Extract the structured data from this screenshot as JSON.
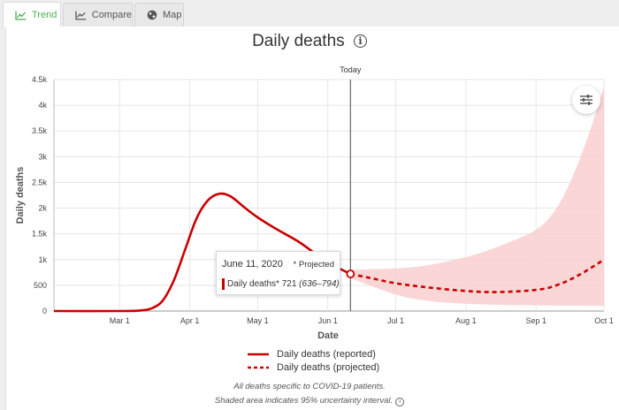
{
  "tabs": [
    {
      "label": "Trend",
      "icon": "line-chart-icon",
      "active": true
    },
    {
      "label": "Compare",
      "icon": "chart-compare-icon",
      "active": false
    },
    {
      "label": "Map",
      "icon": "globe-icon",
      "active": false
    }
  ],
  "chart_data": {
    "type": "line",
    "title": "Daily deaths",
    "xlabel": "Date",
    "ylabel": "Daily deaths",
    "x_range": [
      "2020-02-01",
      "2020-10-01"
    ],
    "x_ticks": [
      {
        "date": "2020-03-01",
        "label": "Mar 1"
      },
      {
        "date": "2020-04-01",
        "label": "Apr 1"
      },
      {
        "date": "2020-05-01",
        "label": "May 1"
      },
      {
        "date": "2020-06-01",
        "label": "Jun 1"
      },
      {
        "date": "2020-07-01",
        "label": "Jul 1"
      },
      {
        "date": "2020-08-01",
        "label": "Aug 1"
      },
      {
        "date": "2020-09-01",
        "label": "Sep 1"
      },
      {
        "date": "2020-10-01",
        "label": "Oct 1"
      }
    ],
    "ylim": [
      0,
      4500
    ],
    "y_ticks": [
      {
        "value": 0,
        "label": "0"
      },
      {
        "value": 500,
        "label": "500"
      },
      {
        "value": 1000,
        "label": "1k"
      },
      {
        "value": 1500,
        "label": "1.5k"
      },
      {
        "value": 2000,
        "label": "2k"
      },
      {
        "value": 2500,
        "label": "2.5k"
      },
      {
        "value": 3000,
        "label": "3k"
      },
      {
        "value": 3500,
        "label": "3.5k"
      },
      {
        "value": 4000,
        "label": "4k"
      },
      {
        "value": 4500,
        "label": "4.5k"
      }
    ],
    "grid": true,
    "today": {
      "date": "2020-06-11",
      "label": "Today"
    },
    "series": [
      {
        "name": "Daily deaths (reported)",
        "style": "solid",
        "color": "#cc0000",
        "points": [
          [
            "2020-02-01",
            0
          ],
          [
            "2020-03-01",
            0
          ],
          [
            "2020-03-10",
            10
          ],
          [
            "2020-03-15",
            50
          ],
          [
            "2020-03-20",
            200
          ],
          [
            "2020-03-25",
            600
          ],
          [
            "2020-03-30",
            1200
          ],
          [
            "2020-04-04",
            1800
          ],
          [
            "2020-04-09",
            2150
          ],
          [
            "2020-04-14",
            2280
          ],
          [
            "2020-04-19",
            2230
          ],
          [
            "2020-04-25",
            2020
          ],
          [
            "2020-05-01",
            1820
          ],
          [
            "2020-05-09",
            1600
          ],
          [
            "2020-05-19",
            1350
          ],
          [
            "2020-05-27",
            1100
          ],
          [
            "2020-06-03",
            900
          ],
          [
            "2020-06-11",
            721
          ]
        ]
      },
      {
        "name": "Daily deaths (projected)",
        "style": "dashed",
        "color": "#cc0000",
        "points": [
          [
            "2020-06-11",
            721
          ],
          [
            "2020-06-20",
            640
          ],
          [
            "2020-07-01",
            540
          ],
          [
            "2020-07-15",
            460
          ],
          [
            "2020-08-01",
            390
          ],
          [
            "2020-08-15",
            370
          ],
          [
            "2020-09-01",
            410
          ],
          [
            "2020-09-10",
            500
          ],
          [
            "2020-09-20",
            700
          ],
          [
            "2020-10-01",
            1000
          ]
        ]
      }
    ],
    "uncertainty_band": {
      "color": "#f9cfcf",
      "upper": [
        [
          "2020-06-11",
          800
        ],
        [
          "2020-07-01",
          830
        ],
        [
          "2020-07-15",
          890
        ],
        [
          "2020-08-01",
          1050
        ],
        [
          "2020-08-15",
          1250
        ],
        [
          "2020-09-01",
          1580
        ],
        [
          "2020-09-10",
          2000
        ],
        [
          "2020-09-17",
          2600
        ],
        [
          "2020-09-24",
          3400
        ],
        [
          "2020-10-01",
          4350
        ]
      ],
      "lower": [
        [
          "2020-06-11",
          640
        ],
        [
          "2020-07-01",
          320
        ],
        [
          "2020-07-15",
          200
        ],
        [
          "2020-08-01",
          140
        ],
        [
          "2020-08-15",
          120
        ],
        [
          "2020-09-01",
          110
        ],
        [
          "2020-10-01",
          100
        ]
      ]
    },
    "tooltip": {
      "date": "June 11, 2020",
      "projected_marker": "* Projected",
      "series_label": "Daily deaths*",
      "value": "721",
      "range": "(636–794)"
    },
    "legend": {
      "placement": "bottom",
      "items": [
        {
          "label": "Daily deaths (reported)",
          "style": "solid"
        },
        {
          "label": "Daily deaths (projected)",
          "style": "dashed"
        }
      ]
    },
    "footnotes": [
      "All deaths specific to COVID-19 patients.",
      "Shaded area indicates 95% uncertainty interval."
    ]
  }
}
